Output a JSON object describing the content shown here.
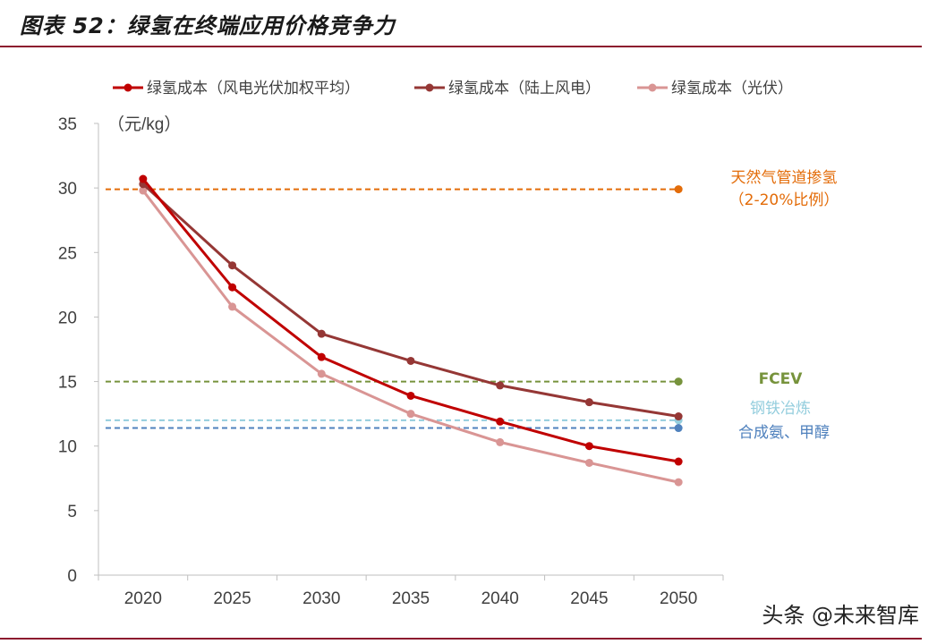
{
  "page": {
    "title": "图表 52：绿氢在终端应用价格竞争力",
    "watermark": "头条 @未来智库"
  },
  "chart_data": {
    "type": "line",
    "title": "图表 52：绿氢在终端应用价格竞争力",
    "unit_label": "（元/kg）",
    "x": [
      2020,
      2025,
      2030,
      2035,
      2040,
      2045,
      2050
    ],
    "x_tick_labels": [
      "2020",
      "2025",
      "2030",
      "2035",
      "2040",
      "2045",
      "2050"
    ],
    "ylim": [
      0,
      35
    ],
    "y_ticks": [
      0,
      5,
      10,
      15,
      20,
      25,
      30,
      35
    ],
    "grid": false,
    "legend_position": "top",
    "series": [
      {
        "name": "绿氢成本（风电光伏加权平均）",
        "color": "#c00000",
        "values": [
          30.7,
          22.3,
          16.9,
          13.9,
          11.9,
          10.0,
          8.8
        ]
      },
      {
        "name": "绿氢成本（陆上风电）",
        "color": "#953735",
        "values": [
          30.3,
          24.0,
          18.7,
          16.6,
          14.7,
          13.4,
          12.3
        ]
      },
      {
        "name": "绿氢成本（光伏）",
        "color": "#d99594",
        "values": [
          29.8,
          20.8,
          15.6,
          12.5,
          10.3,
          8.7,
          7.2
        ]
      }
    ],
    "reference_lines": [
      {
        "label_lines": [
          "天然气管道掺氢",
          "（2-20%比例）"
        ],
        "value": 29.9,
        "color": "#e36c09"
      },
      {
        "label_lines": [
          "FCEV"
        ],
        "value": 15.0,
        "color": "#77933c"
      },
      {
        "label_lines": [
          "钢铁冶炼"
        ],
        "value": 12.0,
        "color": "#93cddd"
      },
      {
        "label_lines": [
          "合成氨、甲醇"
        ],
        "value": 11.4,
        "color": "#4f81bd"
      }
    ]
  }
}
